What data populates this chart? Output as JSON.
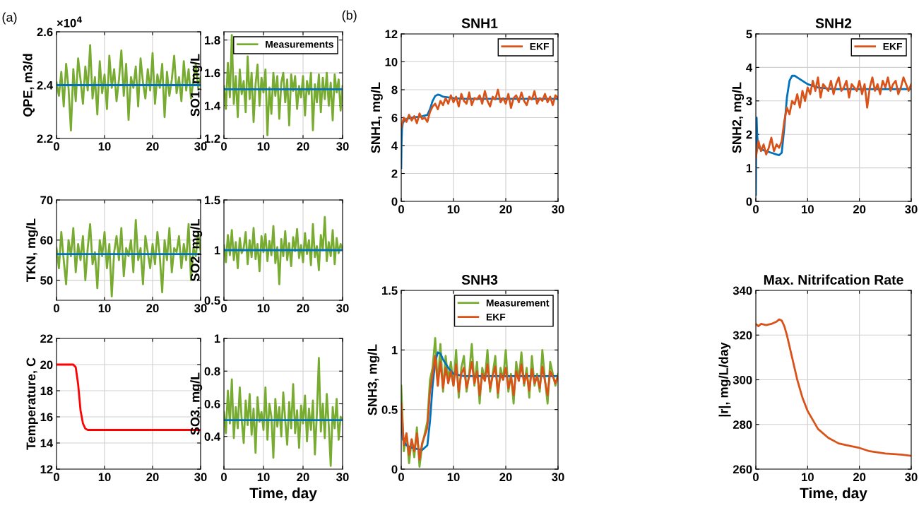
{
  "chart_data": [
    {
      "type": "line",
      "ylabel": "QPE, m3/d",
      "xlim": [
        0,
        30
      ],
      "xticks": [
        0,
        10,
        20,
        30
      ],
      "ylim": [
        2.2,
        2.6
      ],
      "yticks": [
        2.2,
        2.4,
        2.6
      ],
      "grid": true,
      "annotations": [
        "(a)",
        "×10$^{4}$"
      ],
      "series": [
        {
          "color": "#77ac30",
          "x": [
            0,
            0.5,
            1,
            1.5,
            2,
            2.5,
            3,
            3.5,
            4,
            4.5,
            5,
            5.5,
            6,
            6.5,
            7,
            7.5,
            8,
            8.5,
            9,
            9.5,
            10,
            10.5,
            11,
            11.5,
            12,
            12.5,
            13,
            13.5,
            14,
            14.5,
            15,
            15.5,
            16,
            16.5,
            17,
            17.5,
            18,
            18.5,
            19,
            19.5,
            20,
            20.5,
            21,
            21.5,
            22,
            22.5,
            23,
            23.5,
            24,
            24.5,
            25,
            25.5,
            26,
            26.5,
            27,
            27.5,
            28,
            28.5,
            29,
            29.5,
            30
          ],
          "values": [
            2.41,
            2.36,
            2.45,
            2.32,
            2.48,
            2.39,
            2.23,
            2.46,
            2.34,
            2.5,
            2.42,
            2.33,
            2.47,
            2.38,
            2.55,
            2.35,
            2.43,
            2.29,
            2.49,
            2.37,
            2.44,
            2.31,
            2.51,
            2.39,
            2.46,
            2.34,
            2.42,
            2.53,
            2.36,
            2.48,
            2.27,
            2.43,
            2.39,
            2.47,
            2.32,
            2.5,
            2.41,
            2.35,
            2.46,
            2.38,
            2.52,
            2.33,
            2.44,
            2.39,
            2.48,
            2.28,
            2.45,
            2.36,
            2.42,
            2.51,
            2.37,
            2.43,
            2.34,
            2.49,
            2.38,
            2.46,
            2.35,
            2.42,
            2.48,
            2.39,
            2.43
          ]
        },
        {
          "color": "#0072bd",
          "x": [
            0,
            30
          ],
          "values": [
            2.4,
            2.4
          ]
        }
      ]
    },
    {
      "type": "line",
      "ylabel": "SO1, mg/L",
      "xlim": [
        0,
        30
      ],
      "xticks": [
        0,
        10,
        20,
        30
      ],
      "ylim": [
        1.2,
        1.85
      ],
      "yticks": [
        1.2,
        1.4,
        1.6,
        1.8
      ],
      "grid": true,
      "legend": "top right",
      "series": [
        {
          "name": "Measurements",
          "color": "#77ac30",
          "x": [
            0,
            0.5,
            1,
            1.5,
            2,
            2.5,
            3,
            3.5,
            4,
            4.5,
            5,
            5.5,
            6,
            6.5,
            7,
            7.5,
            8,
            8.5,
            9,
            9.5,
            10,
            10.5,
            11,
            11.5,
            12,
            12.5,
            13,
            13.5,
            14,
            14.5,
            15,
            15.5,
            16,
            16.5,
            17,
            17.5,
            18,
            18.5,
            19,
            19.5,
            20,
            20.5,
            21,
            21.5,
            22,
            22.5,
            23,
            23.5,
            24,
            24.5,
            25,
            25.5,
            26,
            26.5,
            27,
            27.5,
            28,
            28.5,
            29,
            29.5,
            30
          ],
          "values": [
            1.52,
            1.38,
            1.66,
            1.45,
            1.83,
            1.41,
            1.58,
            1.33,
            1.62,
            1.47,
            1.55,
            1.36,
            1.7,
            1.44,
            1.6,
            1.3,
            1.53,
            1.65,
            1.4,
            1.57,
            1.48,
            1.62,
            1.22,
            1.51,
            1.35,
            1.6,
            1.46,
            1.58,
            1.32,
            1.54,
            1.6,
            1.42,
            1.56,
            1.28,
            1.59,
            1.49,
            1.58,
            1.38,
            1.52,
            1.45,
            1.58,
            1.34,
            1.55,
            1.47,
            1.6,
            1.25,
            1.53,
            1.42,
            1.59,
            1.36,
            1.57,
            1.44,
            1.6,
            1.4,
            1.54,
            1.31,
            1.59,
            1.48,
            1.56,
            1.37,
            1.52
          ]
        },
        {
          "color": "#0072bd",
          "x": [
            0,
            30
          ],
          "values": [
            1.5,
            1.5
          ]
        }
      ]
    },
    {
      "type": "line",
      "ylabel": "TKN, mg/L",
      "xlim": [
        0,
        30
      ],
      "xticks": [
        0,
        10,
        20,
        30
      ],
      "ylim": [
        45,
        70
      ],
      "yticks": [
        50,
        60,
        70
      ],
      "grid": true,
      "series": [
        {
          "color": "#77ac30",
          "x": [
            0,
            0.5,
            1,
            1.5,
            2,
            2.5,
            3,
            3.5,
            4,
            4.5,
            5,
            5.5,
            6,
            6.5,
            7,
            7.5,
            8,
            8.5,
            9,
            9.5,
            10,
            10.5,
            11,
            11.5,
            12,
            12.5,
            13,
            13.5,
            14,
            14.5,
            15,
            15.5,
            16,
            16.5,
            17,
            17.5,
            18,
            18.5,
            19,
            19.5,
            20,
            20.5,
            21,
            21.5,
            22,
            22.5,
            23,
            23.5,
            24,
            24.5,
            25,
            25.5,
            26,
            26.5,
            27,
            27.5,
            28,
            28.5,
            29,
            29.5,
            30
          ],
          "values": [
            58,
            53,
            62,
            55,
            49,
            60,
            56,
            63,
            52,
            59,
            55,
            61,
            50,
            58,
            64,
            54,
            57,
            48,
            60,
            56,
            62,
            53,
            59,
            46,
            57,
            61,
            55,
            63,
            51,
            58,
            56,
            60,
            52,
            65,
            55,
            58,
            49,
            61,
            57,
            53,
            59,
            54,
            62,
            56,
            47,
            60,
            55,
            63,
            52,
            58,
            57,
            61,
            53,
            59,
            55,
            64,
            50,
            58,
            56,
            62,
            57
          ]
        },
        {
          "color": "#0072bd",
          "x": [
            0,
            30
          ],
          "values": [
            56.5,
            56.5
          ]
        }
      ]
    },
    {
      "type": "line",
      "ylabel": "SO2, mg/L",
      "xlim": [
        0,
        30
      ],
      "xticks": [
        0,
        10,
        20,
        30
      ],
      "ylim": [
        0.5,
        1.5
      ],
      "yticks": [
        0.5,
        1,
        1.5
      ],
      "grid": true,
      "series": [
        {
          "color": "#77ac30",
          "x": [
            0,
            0.5,
            1,
            1.5,
            2,
            2.5,
            3,
            3.5,
            4,
            4.5,
            5,
            5.5,
            6,
            6.5,
            7,
            7.5,
            8,
            8.5,
            9,
            9.5,
            10,
            10.5,
            11,
            11.5,
            12,
            12.5,
            13,
            13.5,
            14,
            14.5,
            15,
            15.5,
            16,
            16.5,
            17,
            17.5,
            18,
            18.5,
            19,
            19.5,
            20,
            20.5,
            21,
            21.5,
            22,
            22.5,
            23,
            23.5,
            24,
            24.5,
            25,
            25.5,
            26,
            26.5,
            27,
            27.5,
            28,
            28.5,
            29,
            29.5,
            30
          ],
          "values": [
            1.05,
            0.88,
            1.15,
            0.95,
            1.2,
            0.9,
            1.08,
            0.82,
            1.12,
            0.97,
            1.02,
            1.18,
            0.86,
            1.1,
            0.93,
            1.22,
            0.91,
            1.06,
            0.79,
            1.14,
            0.98,
            1.16,
            0.89,
            1.09,
            0.95,
            1.24,
            0.87,
            1.03,
            0.66,
            1.11,
            0.94,
            1.19,
            0.9,
            1.07,
            0.84,
            1.13,
            0.99,
            1.21,
            0.92,
            1.05,
            0.88,
            1.17,
            0.96,
            1.1,
            0.85,
            1.26,
            0.93,
            1.04,
            0.8,
            1.15,
            1.0,
            1.33,
            0.89,
            1.08,
            0.94,
            1.2,
            0.86,
            1.12,
            0.97,
            1.06,
            1.01
          ]
        },
        {
          "color": "#0072bd",
          "x": [
            0,
            30
          ],
          "values": [
            1.0,
            1.0
          ]
        }
      ]
    },
    {
      "type": "line",
      "ylabel": "Temperature, C",
      "xlim": [
        0,
        30
      ],
      "xticks": [
        0,
        10,
        20,
        30
      ],
      "ylim": [
        12,
        22
      ],
      "yticks": [
        12,
        14,
        16,
        18,
        20,
        22
      ],
      "grid": true,
      "series": [
        {
          "color": "#ff0000",
          "x": [
            0,
            3.5,
            4,
            4.5,
            5,
            5.5,
            6,
            6.5,
            7,
            30
          ],
          "values": [
            20,
            20,
            19.8,
            18.5,
            16.5,
            15.5,
            15.1,
            15,
            15,
            15
          ]
        }
      ]
    },
    {
      "type": "line",
      "xlabel": "Time, day",
      "ylabel": "SO3, mg/L",
      "xlim": [
        0,
        30
      ],
      "xticks": [
        0,
        10,
        20,
        30
      ],
      "ylim": [
        0.2,
        1
      ],
      "yticks": [
        0.4,
        0.6,
        0.8,
        1
      ],
      "grid": true,
      "series": [
        {
          "color": "#77ac30",
          "x": [
            0,
            0.5,
            1,
            1.5,
            2,
            2.5,
            3,
            3.5,
            4,
            4.5,
            5,
            5.5,
            6,
            6.5,
            7,
            7.5,
            8,
            8.5,
            9,
            9.5,
            10,
            10.5,
            11,
            11.5,
            12,
            12.5,
            13,
            13.5,
            14,
            14.5,
            15,
            15.5,
            16,
            16.5,
            17,
            17.5,
            18,
            18.5,
            19,
            19.5,
            20,
            20.5,
            21,
            21.5,
            22,
            22.5,
            23,
            23.5,
            24,
            24.5,
            25,
            25.5,
            26,
            26.5,
            27,
            27.5,
            28,
            28.5,
            29,
            29.5,
            30
          ],
          "values": [
            0.55,
            0.42,
            0.68,
            0.48,
            0.75,
            0.39,
            0.58,
            0.45,
            0.7,
            0.5,
            0.36,
            0.62,
            0.47,
            0.66,
            0.41,
            0.57,
            0.3,
            0.64,
            0.49,
            0.55,
            0.44,
            0.7,
            0.38,
            0.6,
            0.52,
            0.27,
            0.63,
            0.46,
            0.58,
            0.4,
            0.67,
            0.5,
            0.35,
            0.61,
            0.45,
            0.72,
            0.42,
            0.56,
            0.33,
            0.59,
            0.48,
            0.65,
            0.37,
            0.57,
            0.44,
            0.62,
            0.29,
            0.54,
            0.88,
            0.43,
            0.6,
            0.39,
            0.66,
            0.47,
            0.22,
            0.58,
            0.45,
            0.63,
            0.38,
            0.52,
            0.5
          ]
        },
        {
          "color": "#0072bd",
          "x": [
            0,
            30
          ],
          "values": [
            0.5,
            0.5
          ]
        }
      ]
    },
    {
      "type": "line",
      "title": "SNH1",
      "ylabel": "SNH1, mg/L",
      "xlim": [
        0,
        30
      ],
      "xticks": [
        0,
        10,
        20,
        30
      ],
      "ylim": [
        0,
        12
      ],
      "yticks": [
        0,
        2,
        4,
        6,
        8,
        10,
        12
      ],
      "grid": true,
      "legend": "top right",
      "annotations": [
        "(b)"
      ],
      "series": [
        {
          "color": "#0072bd",
          "x": [
            0,
            0.05,
            0.15,
            0.3,
            0.6,
            1,
            2,
            3,
            4,
            5,
            5.5,
            6,
            6.5,
            7,
            7.5,
            8,
            9,
            10,
            12,
            15,
            20,
            30
          ],
          "values": [
            2.4,
            4,
            5.2,
            5.6,
            5.8,
            5.9,
            6,
            6.05,
            6.1,
            6.2,
            6.6,
            7.2,
            7.55,
            7.65,
            7.6,
            7.5,
            7.45,
            7.4,
            7.35,
            7.35,
            7.35,
            7.35
          ]
        },
        {
          "name": "EKF",
          "color": "#d95319",
          "x": [
            0,
            0.5,
            1,
            1.5,
            2,
            2.5,
            3,
            3.5,
            4,
            4.5,
            5,
            5.5,
            6,
            6.5,
            7,
            7.5,
            8,
            8.5,
            9,
            9.5,
            10,
            10.5,
            11,
            11.5,
            12,
            12.5,
            13,
            13.5,
            14,
            14.5,
            15,
            15.5,
            16,
            16.5,
            17,
            17.5,
            18,
            18.5,
            19,
            19.5,
            20,
            20.5,
            21,
            21.5,
            22,
            22.5,
            23,
            23.5,
            24,
            24.5,
            25,
            25.5,
            26,
            26.5,
            27,
            27.5,
            28,
            28.5,
            29,
            29.5,
            30
          ],
          "values": [
            5.3,
            6.0,
            5.7,
            6.2,
            5.8,
            6.1,
            5.6,
            6.3,
            5.9,
            6.0,
            5.7,
            6.4,
            6.8,
            7.0,
            6.6,
            7.2,
            6.9,
            7.4,
            7.0,
            7.6,
            7.1,
            7.5,
            6.8,
            7.7,
            7.2,
            7.0,
            7.8,
            6.9,
            7.4,
            7.3,
            7.6,
            7.0,
            7.9,
            7.2,
            6.8,
            7.5,
            7.3,
            8.0,
            7.1,
            7.4,
            7.0,
            7.7,
            6.7,
            7.4,
            7.6,
            7.1,
            7.8,
            7.2,
            6.9,
            7.5,
            7.3,
            7.9,
            7.0,
            7.4,
            7.2,
            7.7,
            7.1,
            7.5,
            6.9,
            7.6,
            7.4
          ]
        }
      ]
    },
    {
      "type": "line",
      "title": "SNH2",
      "ylabel": "SNH2, mg/L",
      "xlim": [
        0,
        30
      ],
      "xticks": [
        0,
        10,
        20,
        30
      ],
      "ylim": [
        0,
        5
      ],
      "yticks": [
        0,
        1,
        2,
        3,
        4,
        5
      ],
      "grid": true,
      "legend": "top right",
      "series": [
        {
          "color": "#0072bd",
          "x": [
            0,
            0.05,
            0.15,
            0.25,
            0.4,
            0.6,
            1,
            2,
            3,
            4,
            4.5,
            5,
            5.5,
            6,
            6.5,
            7,
            7.5,
            8,
            9,
            10,
            12,
            15,
            20,
            30
          ],
          "values": [
            0.2,
            1.5,
            2.5,
            2.0,
            1.7,
            1.6,
            1.55,
            1.5,
            1.45,
            1.4,
            1.38,
            1.45,
            2.2,
            3.1,
            3.6,
            3.75,
            3.75,
            3.7,
            3.6,
            3.5,
            3.4,
            3.35,
            3.35,
            3.35
          ]
        },
        {
          "name": "EKF",
          "color": "#d95319",
          "x": [
            0,
            0.5,
            1,
            1.5,
            2,
            2.5,
            3,
            3.5,
            4,
            4.5,
            5,
            5.5,
            6,
            6.5,
            7,
            7.5,
            8,
            8.5,
            9,
            9.5,
            10,
            10.5,
            11,
            11.5,
            12,
            12.5,
            13,
            13.5,
            14,
            14.5,
            15,
            15.5,
            16,
            16.5,
            17,
            17.5,
            18,
            18.5,
            19,
            19.5,
            20,
            20.5,
            21,
            21.5,
            22,
            22.5,
            23,
            23.5,
            24,
            24.5,
            25,
            25.5,
            26,
            26.5,
            27,
            27.5,
            28,
            28.5,
            29,
            29.5,
            30
          ],
          "values": [
            1.3,
            1.8,
            1.5,
            1.7,
            1.4,
            1.6,
            1.9,
            1.5,
            1.7,
            1.6,
            1.8,
            2.4,
            2.8,
            2.6,
            3.0,
            2.9,
            3.2,
            2.8,
            3.3,
            3.0,
            3.4,
            3.2,
            3.6,
            3.3,
            3.7,
            3.1,
            3.5,
            3.4,
            3.3,
            3.6,
            3.2,
            3.5,
            3.7,
            3.3,
            3.4,
            3.6,
            3.1,
            3.5,
            3.4,
            3.3,
            3.6,
            3.2,
            3.5,
            2.8,
            3.4,
            3.7,
            3.3,
            3.5,
            3.2,
            3.6,
            3.4,
            3.7,
            3.3,
            3.5,
            3.6,
            3.2,
            3.4,
            3.7,
            3.5,
            3.3,
            3.5
          ]
        }
      ]
    },
    {
      "type": "line",
      "title": "SNH3",
      "ylabel": "SNH3, mg/L",
      "xlim": [
        0,
        30
      ],
      "xticks": [
        0,
        10,
        20,
        30
      ],
      "ylim": [
        0,
        1.5
      ],
      "yticks": [
        0,
        0.5,
        1,
        1.5
      ],
      "grid": true,
      "legend": "top right",
      "series": [
        {
          "name": "Measurement",
          "color": "#77ac30",
          "x": [
            0,
            0.5,
            1,
            1.5,
            2,
            2.5,
            3,
            3.5,
            4,
            4.5,
            5,
            5.5,
            6,
            6.5,
            7,
            7.5,
            8,
            8.5,
            9,
            9.5,
            10,
            10.5,
            11,
            11.5,
            12,
            12.5,
            13,
            13.5,
            14,
            14.5,
            15,
            15.5,
            16,
            16.5,
            17,
            17.5,
            18,
            18.5,
            19,
            19.5,
            20,
            20.5,
            21,
            21.5,
            22,
            22.5,
            23,
            23.5,
            24,
            24.5,
            25,
            25.5,
            26,
            26.5,
            27,
            27.5,
            28,
            28.5,
            29,
            29.5,
            30
          ],
          "values": [
            0.7,
            0.15,
            0.3,
            0.05,
            0.25,
            0.1,
            0.35,
            0.02,
            0.2,
            0.3,
            0.4,
            0.75,
            0.85,
            1.1,
            0.7,
            1.05,
            0.65,
            0.95,
            0.75,
            0.9,
            0.7,
            1.0,
            0.6,
            0.85,
            0.95,
            0.65,
            0.8,
            1.05,
            0.7,
            0.9,
            0.55,
            0.85,
            0.75,
            1.0,
            0.65,
            0.8,
            0.95,
            0.6,
            0.85,
            0.75,
            1.0,
            0.65,
            0.8,
            0.55,
            0.9,
            0.75,
            0.98,
            0.7,
            0.85,
            0.6,
            0.95,
            0.7,
            0.8,
            0.65,
            1.0,
            0.75,
            0.55,
            0.9,
            0.8,
            0.7,
            0.8
          ]
        },
        {
          "color": "#0072bd",
          "x": [
            0,
            0.3,
            1,
            2,
            3,
            4,
            5,
            5.5,
            6,
            6.5,
            7,
            7.5,
            8,
            9,
            10,
            12,
            15,
            20,
            30
          ],
          "values": [
            0.4,
            0.25,
            0.2,
            0.18,
            0.17,
            0.16,
            0.2,
            0.4,
            0.7,
            0.9,
            0.98,
            0.97,
            0.92,
            0.85,
            0.8,
            0.78,
            0.78,
            0.78,
            0.78
          ]
        },
        {
          "name": "EKF",
          "color": "#d95319",
          "x": [
            0,
            0.5,
            1,
            1.5,
            2,
            2.5,
            3,
            3.5,
            4,
            4.5,
            5,
            5.5,
            6,
            6.5,
            7,
            7.5,
            8,
            8.5,
            9,
            9.5,
            10,
            10.5,
            11,
            11.5,
            12,
            12.5,
            13,
            13.5,
            14,
            14.5,
            15,
            15.5,
            16,
            16.5,
            17,
            17.5,
            18,
            18.5,
            19,
            19.5,
            20,
            20.5,
            21,
            21.5,
            22,
            22.5,
            23,
            23.5,
            24,
            24.5,
            25,
            25.5,
            26,
            26.5,
            27,
            27.5,
            28,
            28.5,
            29,
            29.5,
            30
          ],
          "values": [
            0.55,
            0.2,
            0.3,
            0.12,
            0.25,
            0.15,
            0.3,
            0.08,
            0.22,
            0.28,
            0.35,
            0.65,
            0.8,
            0.95,
            0.7,
            0.9,
            0.68,
            0.85,
            0.72,
            0.82,
            0.7,
            0.88,
            0.65,
            0.8,
            0.85,
            0.68,
            0.78,
            0.9,
            0.72,
            0.82,
            0.62,
            0.8,
            0.74,
            0.88,
            0.68,
            0.78,
            0.86,
            0.64,
            0.8,
            0.75,
            0.85,
            0.68,
            0.78,
            0.62,
            0.82,
            0.74,
            0.88,
            0.72,
            0.8,
            0.66,
            0.84,
            0.72,
            0.78,
            0.68,
            0.86,
            0.74,
            0.62,
            0.82,
            0.78,
            0.72,
            0.78
          ]
        }
      ]
    },
    {
      "type": "line",
      "title": "Max. Nitrifcation Rate",
      "xlabel": "Time, day",
      "ylabel": "|r|, mg/L/day",
      "xlim": [
        0,
        30
      ],
      "xticks": [
        0,
        10,
        20,
        30
      ],
      "ylim": [
        260,
        340
      ],
      "yticks": [
        260,
        280,
        300,
        320,
        340
      ],
      "grid": true,
      "series": [
        {
          "color": "#d95319",
          "x": [
            0,
            0.5,
            1,
            2,
            3,
            4,
            4.5,
            5,
            5.5,
            6,
            6.5,
            7,
            7.5,
            8,
            9,
            10,
            11,
            12,
            14,
            16,
            18,
            20,
            22,
            25,
            28,
            30
          ],
          "values": [
            325,
            324,
            325,
            324.5,
            325,
            326,
            327,
            326.5,
            324,
            320,
            315,
            310,
            305,
            300,
            292,
            286,
            282,
            278,
            274,
            271.5,
            270.5,
            269.5,
            268,
            267,
            266.5,
            266
          ]
        }
      ]
    }
  ]
}
